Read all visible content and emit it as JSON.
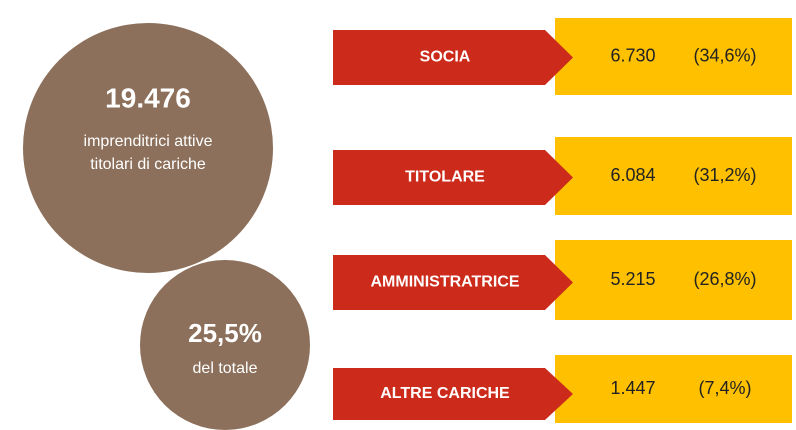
{
  "summary": {
    "total": "19.476",
    "total_label": [
      "imprenditrici attive",
      "titolari di cariche"
    ],
    "share": "25,5%",
    "share_label": "del totale"
  },
  "rows": [
    {
      "label": "SOCIA",
      "count": "6.730",
      "percent": "(34,6%)"
    },
    {
      "label": "TITOLARE",
      "count": "6.084",
      "percent": "(31,2%)"
    },
    {
      "label": "AMMINISTRATRICE",
      "count": "5.215",
      "percent": "(26,8%)"
    },
    {
      "label": "ALTRE CARICHE",
      "count": "1.447",
      "percent": "(7,4%)"
    }
  ]
}
